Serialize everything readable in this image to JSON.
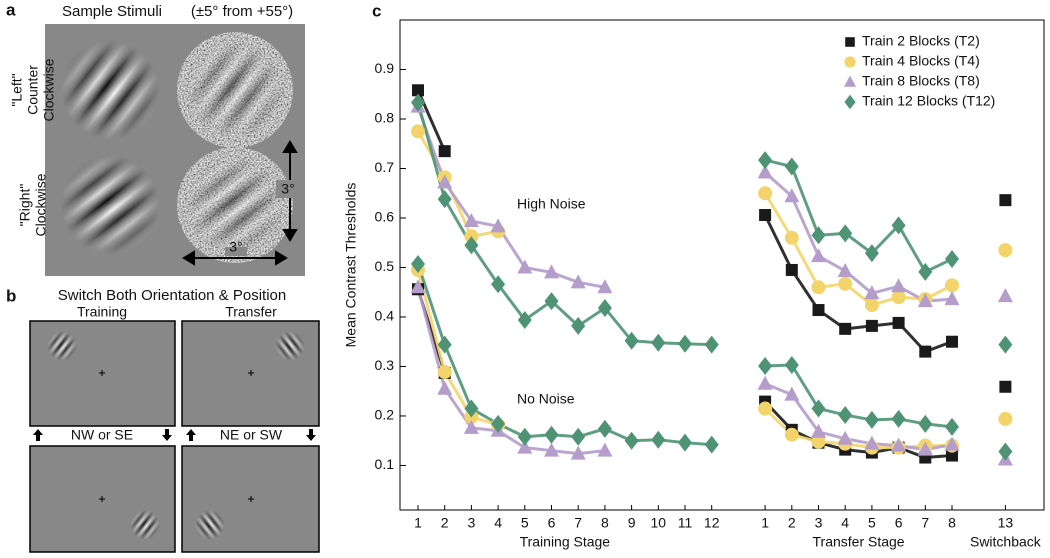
{
  "panel_a": {
    "label": "a",
    "title": "Sample Stimuli",
    "subtitle": "(±5° from +55°)",
    "row_labels": [
      [
        "\"Left\"",
        "Counter",
        "Clockwise"
      ],
      [
        "\"Right\"",
        "Clockwise"
      ]
    ],
    "size_labels": [
      "3°",
      "3°"
    ]
  },
  "panel_b": {
    "label": "b",
    "title": "Switch Both Orientation & Position",
    "column_labels": [
      "Training",
      "Transfer"
    ],
    "direction_labels": [
      "NW or SE",
      "NE or SW"
    ]
  },
  "chart_data": {
    "type": "scatter",
    "panel_label": "c",
    "y_label": "Mean Contrast Thresholds",
    "annotations": [
      "High Noise",
      "No Noise"
    ],
    "x_group_labels": [
      "Training Stage",
      "Transfer Stage",
      "Switchback"
    ],
    "categories": [
      "1",
      "2",
      "3",
      "4",
      "5",
      "6",
      "7",
      "8",
      "9",
      "10",
      "11",
      "12",
      null,
      "1",
      "2",
      "3",
      "4",
      "5",
      "6",
      "7",
      "8",
      null,
      "13"
    ],
    "ylim": [
      0.01,
      1.0
    ],
    "yticks": [
      0.1,
      0.2,
      0.3,
      0.4,
      0.5,
      0.6,
      0.7,
      0.8,
      0.9
    ],
    "legend": "upper right",
    "series": [
      {
        "name": "Train 2 Blocks (T2)",
        "color": "#1a1a1a",
        "marker": "square",
        "high_noise": [
          0.858,
          0.735,
          null,
          null,
          null,
          null,
          null,
          null,
          null,
          null,
          null,
          null,
          null,
          0.606,
          0.495,
          0.414,
          0.376,
          0.382,
          0.388,
          0.33,
          0.35,
          null,
          0.636
        ],
        "no_noise": [
          0.456,
          0.287,
          null,
          null,
          null,
          null,
          null,
          null,
          null,
          null,
          null,
          null,
          null,
          0.229,
          0.172,
          0.146,
          0.132,
          0.126,
          0.136,
          0.116,
          0.12,
          null,
          0.259
        ]
      },
      {
        "name": "Train 4 Blocks (T4)",
        "color": "#f3d46a",
        "marker": "circle",
        "high_noise": [
          0.775,
          0.682,
          0.563,
          0.573,
          null,
          null,
          null,
          null,
          null,
          null,
          null,
          null,
          null,
          0.65,
          0.56,
          0.46,
          0.467,
          0.424,
          0.44,
          0.436,
          0.464,
          null,
          0.535
        ],
        "no_noise": [
          0.495,
          0.289,
          0.198,
          0.182,
          null,
          null,
          null,
          null,
          null,
          null,
          null,
          null,
          null,
          0.215,
          0.162,
          0.148,
          0.144,
          0.136,
          0.136,
          0.14,
          0.14,
          null,
          0.194
        ]
      },
      {
        "name": "Train 8 Blocks (T8)",
        "color": "#b49ccb",
        "marker": "triangle",
        "high_noise": [
          0.825,
          0.672,
          0.594,
          0.583,
          0.5,
          0.49,
          0.47,
          0.46,
          null,
          null,
          null,
          null,
          null,
          0.692,
          0.644,
          0.523,
          0.493,
          0.448,
          0.462,
          0.432,
          0.436,
          null,
          0.442
        ],
        "no_noise": [
          0.46,
          0.255,
          0.176,
          0.17,
          0.136,
          0.13,
          0.124,
          0.13,
          null,
          null,
          null,
          null,
          null,
          0.265,
          0.243,
          0.168,
          0.154,
          0.144,
          0.14,
          0.132,
          0.142,
          null,
          0.112
        ]
      },
      {
        "name": "Train 12 Blocks (T12)",
        "color": "#4e9474",
        "marker": "diamond",
        "high_noise": [
          0.833,
          0.638,
          0.545,
          0.466,
          0.394,
          0.432,
          0.382,
          0.418,
          0.352,
          0.348,
          0.346,
          0.344,
          null,
          0.717,
          0.704,
          0.565,
          0.569,
          0.529,
          0.585,
          0.491,
          0.517,
          null,
          0.344
        ],
        "no_noise": [
          0.507,
          0.344,
          0.215,
          0.184,
          0.158,
          0.162,
          0.158,
          0.174,
          0.15,
          0.152,
          0.146,
          0.142,
          null,
          0.301,
          0.303,
          0.215,
          0.202,
          0.192,
          0.194,
          0.184,
          0.178,
          null,
          0.128
        ]
      }
    ]
  }
}
